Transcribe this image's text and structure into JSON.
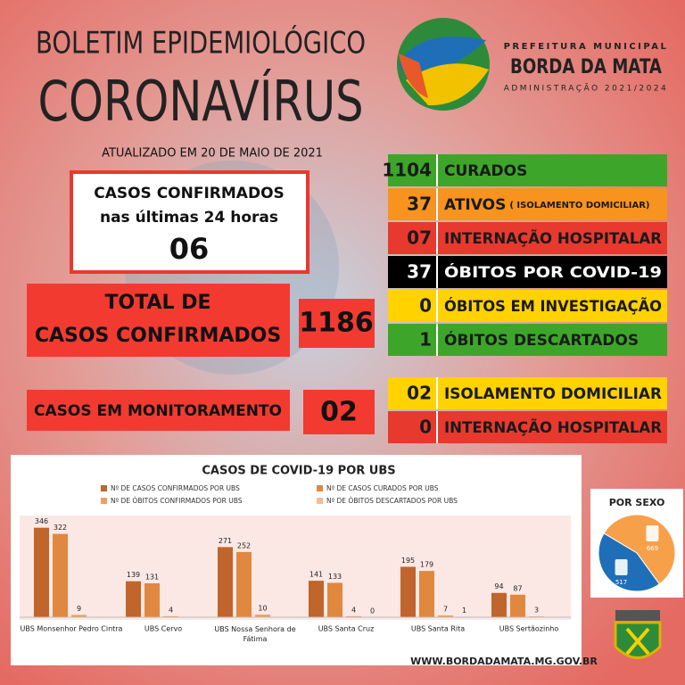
{
  "header": {
    "title": "BOLETIM EPIDEMIOLÓGICO",
    "subtitle": "CORONAVÍRUS",
    "updated": "ATUALIZADO EM 20 DE MAIO DE 2021"
  },
  "logo": {
    "line1": "PREFEITURA MUNICIPAL",
    "line2": "BORDA DA MATA",
    "line3": "ADMINISTRAÇÃO 2021/2024"
  },
  "last24": {
    "line1": "CASOS CONFIRMADOS",
    "line2": "nas últimas 24 horas",
    "value": "06"
  },
  "total": {
    "line1": "TOTAL DE",
    "line2": "CASOS CONFIRMADOS",
    "value": 1186
  },
  "monitoring": {
    "label": "CASOS EM MONITORAMENTO",
    "value": "02"
  },
  "stats": {
    "rows": [
      {
        "value": 1104,
        "label": "CURADOS",
        "bg": "#3da62a",
        "text_color": "#1a1a1a"
      },
      {
        "value": 37,
        "label": "ATIVOS",
        "note": "( ISOLAMENTO DOMICILIAR)",
        "bg": "#f7931e",
        "text_color": "#1a1a1a"
      },
      {
        "value": "07",
        "label": "INTERNAÇÃO HOSPITALAR",
        "bg": "#e8392e",
        "text_color": "#1a1a1a"
      },
      {
        "value": 37,
        "label": "ÓBITOS POR COVID-19",
        "bg": "#000000",
        "text_color": "#ffffff"
      },
      {
        "value": 0,
        "label": "ÓBITOS EM INVESTIGAÇÃO",
        "bg": "#ffd200",
        "text_color": "#1a1a1a"
      },
      {
        "value": 1,
        "label": "ÓBITOS DESCARTADOS",
        "bg": "#3da62a",
        "text_color": "#1a1a1a"
      }
    ],
    "rows2": [
      {
        "value": "02",
        "label": "ISOLAMENTO DOMICILIAR",
        "bg": "#ffd200",
        "text_color": "#1a1a1a"
      },
      {
        "value": 0,
        "label": "INTERNAÇÃO HOSPITALAR",
        "bg": "#e8392e",
        "text_color": "#1a1a1a"
      }
    ]
  },
  "chart_data": [
    {
      "type": "bar",
      "title": "CASOS DE COVID-19 POR UBS",
      "categories": [
        "UBS Monsenhor Pedro Cintra",
        "UBS Cervo",
        "UBS Nossa Senhora de Fátima",
        "UBS Santa Cruz",
        "UBS Santa Rita",
        "UBS Sertãozinho"
      ],
      "series": [
        {
          "name": "Nº DE CASOS CONFIRMADOS POR UBS",
          "color": "#c0652b",
          "values": [
            346,
            139,
            271,
            141,
            195,
            94
          ]
        },
        {
          "name": "Nº DE CASOS CURADOS POR UBS",
          "color": "#e0883f",
          "values": [
            322,
            131,
            252,
            133,
            179,
            87
          ]
        },
        {
          "name": "Nº DE ÓBITOS CONFIRMADOS POR UBS",
          "color": "#eea05f",
          "values": [
            9,
            4,
            10,
            4,
            7,
            3
          ]
        },
        {
          "name": "Nº DE ÓBITOS DESCARTADOS POR UBS",
          "color": "#f3bd8e",
          "values": [
            null,
            null,
            null,
            0,
            1,
            null
          ]
        }
      ]
    },
    {
      "type": "pie",
      "title": "POR SEXO",
      "values": [
        669,
        517
      ],
      "colors": [
        "#f7a04a",
        "#1f6fb8"
      ]
    }
  ],
  "footer": {
    "url": "WWW.BORDADAMATA.MG.GOV.BR"
  }
}
